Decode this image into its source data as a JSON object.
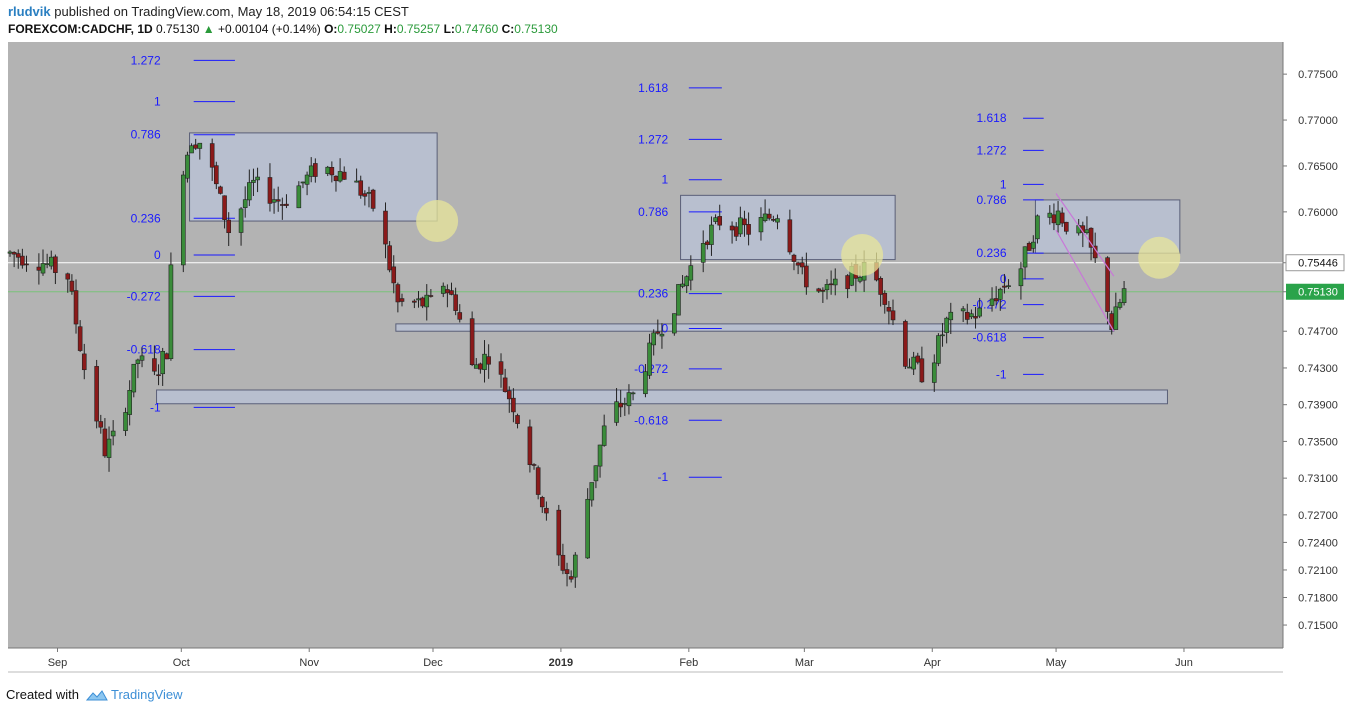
{
  "header": {
    "user": "rludvik",
    "published": "published on TradingView.com, May 18, 2019 06:54:15 CEST",
    "symbol": "FOREXCOM:CADCHF, 1D",
    "last": "0.75130",
    "change": "+0.00104 (+0.14%)",
    "o_label": "O:",
    "o_value": "0.75027",
    "h_label": "H:",
    "h_value": "0.75257",
    "l_label": "L:",
    "l_value": "0.74760",
    "c_label": "C:",
    "c_value": "0.75130"
  },
  "footer": {
    "created": "Created with",
    "brand": "TradingView"
  },
  "colors": {
    "plot_bg": "#b3b3b3",
    "up": "#3a8c3a",
    "down": "#8b1a1a",
    "fib": "#1a1aff",
    "box_fill": "#b9c1d3",
    "box_stroke": "#5a5f78",
    "circle": "#e8e59a",
    "channel": "#c878d8",
    "white_line": "#ffffff",
    "green_line": "#7ac27a"
  },
  "chart_data": {
    "type": "candlestick",
    "instrument": "FOREXCOM:CADCHF",
    "timeframe": "1D",
    "ylim": [
      0.7125,
      0.7785
    ],
    "yticks": [
      "0.77500",
      "0.77000",
      "0.76500",
      "0.76000",
      "0.75446",
      "0.75130",
      "0.74700",
      "0.74300",
      "0.73900",
      "0.73500",
      "0.73100",
      "0.72700",
      "0.72400",
      "0.72100",
      "0.71800",
      "0.71500"
    ],
    "ytick_values": [
      0.775,
      0.77,
      0.765,
      0.76,
      0.75446,
      0.7513,
      0.747,
      0.743,
      0.739,
      0.735,
      0.731,
      0.727,
      0.724,
      0.721,
      0.718,
      0.715
    ],
    "price_marks": [
      {
        "label": "0.75446",
        "value": 0.75446,
        "style": "white"
      },
      {
        "label": "0.75130",
        "value": 0.7513,
        "style": "green"
      }
    ],
    "x_range": [
      "2018-08-20",
      "2019-06-25"
    ],
    "xticks": [
      {
        "label": "Sep",
        "date": "2018-09-01"
      },
      {
        "label": "Oct",
        "date": "2018-10-01"
      },
      {
        "label": "Nov",
        "date": "2018-11-01"
      },
      {
        "label": "Dec",
        "date": "2018-12-01"
      },
      {
        "label": "2019",
        "date": "2019-01-01",
        "bold": true
      },
      {
        "label": "Feb",
        "date": "2019-02-01"
      },
      {
        "label": "Mar",
        "date": "2019-03-01"
      },
      {
        "label": "Apr",
        "date": "2019-04-01"
      },
      {
        "label": "May",
        "date": "2019-05-01"
      },
      {
        "label": "Jun",
        "date": "2019-06-01"
      }
    ],
    "path_knots": [
      [
        "2018-08-20",
        0.7555
      ],
      [
        "2018-08-28",
        0.7545
      ],
      [
        "2018-09-03",
        0.753
      ],
      [
        "2018-09-07",
        0.743
      ],
      [
        "2018-09-12",
        0.734
      ],
      [
        "2018-09-15",
        0.736
      ],
      [
        "2018-09-20",
        0.744
      ],
      [
        "2018-09-24",
        0.742
      ],
      [
        "2018-09-27",
        0.745
      ],
      [
        "2018-09-29",
        0.762
      ],
      [
        "2018-10-03",
        0.768
      ],
      [
        "2018-10-06",
        0.7675
      ],
      [
        "2018-10-12",
        0.758
      ],
      [
        "2018-10-18",
        0.763
      ],
      [
        "2018-10-25",
        0.761
      ],
      [
        "2018-11-03",
        0.765
      ],
      [
        "2018-11-10",
        0.764
      ],
      [
        "2018-11-17",
        0.76
      ],
      [
        "2018-11-22",
        0.75
      ],
      [
        "2018-11-30",
        0.75
      ],
      [
        "2018-12-02",
        0.753
      ],
      [
        "2018-12-06",
        0.75
      ],
      [
        "2018-12-10",
        0.743
      ],
      [
        "2018-12-14",
        0.7445
      ],
      [
        "2018-12-20",
        0.739
      ],
      [
        "2018-12-26",
        0.73
      ],
      [
        "2018-12-30",
        0.723
      ],
      [
        "2019-01-03",
        0.72
      ],
      [
        "2019-01-08",
        0.731
      ],
      [
        "2019-01-12",
        0.738
      ],
      [
        "2019-01-18",
        0.74
      ],
      [
        "2019-01-24",
        0.747
      ],
      [
        "2019-01-28",
        0.75
      ],
      [
        "2019-02-04",
        0.757
      ],
      [
        "2019-02-08",
        0.759
      ],
      [
        "2019-02-15",
        0.758
      ],
      [
        "2019-02-22",
        0.76
      ],
      [
        "2019-02-28",
        0.753
      ],
      [
        "2019-03-05",
        0.751
      ],
      [
        "2019-03-12",
        0.753
      ],
      [
        "2019-03-16",
        0.754
      ],
      [
        "2019-03-20",
        0.751
      ],
      [
        "2019-03-25",
        0.744
      ],
      [
        "2019-03-30",
        0.742
      ],
      [
        "2019-04-04",
        0.748
      ],
      [
        "2019-04-12",
        0.749
      ],
      [
        "2019-04-18",
        0.752
      ],
      [
        "2019-04-22",
        0.754
      ],
      [
        "2019-04-26",
        0.759
      ],
      [
        "2019-05-01",
        0.76
      ],
      [
        "2019-05-04",
        0.758
      ],
      [
        "2019-05-08",
        0.757
      ],
      [
        "2019-05-12",
        0.752
      ],
      [
        "2019-05-14",
        0.7475
      ],
      [
        "2019-05-17",
        0.7513
      ]
    ],
    "zones": [
      {
        "from": "2018-10-03",
        "to": "2018-12-02",
        "top": 0.7686,
        "bottom": 0.759
      },
      {
        "from": "2019-01-30",
        "to": "2019-03-23",
        "top": 0.7618,
        "bottom": 0.7548
      },
      {
        "from": "2019-04-26",
        "to": "2019-05-31",
        "top": 0.7613,
        "bottom": 0.7555
      },
      {
        "from": "2018-11-22",
        "to": "2019-05-15",
        "top": 0.7478,
        "bottom": 0.747
      },
      {
        "from": "2018-09-25",
        "to": "2019-05-28",
        "top": 0.7406,
        "bottom": 0.7391
      }
    ],
    "fib_sets": [
      {
        "label_date": "2018-09-26",
        "from": "2018-10-04",
        "to": "2018-10-14",
        "levels": [
          {
            "label": "1.272",
            "value": 0.7765
          },
          {
            "label": "1",
            "value": 0.772
          },
          {
            "label": "0.786",
            "value": 0.7684
          },
          {
            "label": "0.236",
            "value": 0.7593
          },
          {
            "label": "0",
            "value": 0.7553
          },
          {
            "label": "-0.272",
            "value": 0.7508
          },
          {
            "label": "-0.618",
            "value": 0.745
          },
          {
            "label": "-1",
            "value": 0.7387
          }
        ]
      },
      {
        "label_date": "2019-01-27",
        "from": "2019-02-01",
        "to": "2019-02-09",
        "levels": [
          {
            "label": "1.618",
            "value": 0.7735
          },
          {
            "label": "1.272",
            "value": 0.7679
          },
          {
            "label": "1",
            "value": 0.7635
          },
          {
            "label": "0.786",
            "value": 0.76
          },
          {
            "label": "0.236",
            "value": 0.7511
          },
          {
            "label": "0",
            "value": 0.7473
          },
          {
            "label": "-0.272",
            "value": 0.7429
          },
          {
            "label": "-0.618",
            "value": 0.7373
          },
          {
            "label": "-1",
            "value": 0.7311
          }
        ]
      },
      {
        "label_date": "2019-04-19",
        "from": "2019-04-23",
        "to": "2019-04-28",
        "levels": [
          {
            "label": "1.618",
            "value": 0.7702
          },
          {
            "label": "1.272",
            "value": 0.7667
          },
          {
            "label": "1",
            "value": 0.763
          },
          {
            "label": "0.786",
            "value": 0.7613
          },
          {
            "label": "0.236",
            "value": 0.7555
          },
          {
            "label": "0",
            "value": 0.7527
          },
          {
            "label": "-0.272",
            "value": 0.7499
          },
          {
            "label": "-0.618",
            "value": 0.7463
          },
          {
            "label": "-1",
            "value": 0.7423
          }
        ]
      }
    ],
    "circles": [
      {
        "date": "2018-12-02",
        "value": 0.759
      },
      {
        "date": "2019-03-15",
        "value": 0.7553
      },
      {
        "date": "2019-05-26",
        "value": 0.755
      }
    ],
    "channel": [
      {
        "from": [
          "2019-05-01",
          0.762
        ],
        "to": [
          "2019-05-15",
          0.753
        ]
      },
      {
        "from": [
          "2019-05-01",
          0.758
        ],
        "to": [
          "2019-05-15",
          0.747
        ]
      }
    ]
  }
}
